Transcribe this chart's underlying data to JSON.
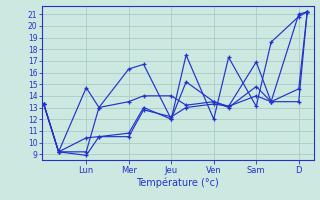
{
  "xlabel": "Température (°c)",
  "background_color": "#cce8e0",
  "grid_color": "#aaccc4",
  "line_color": "#2233cc",
  "spine_color": "#2233cc",
  "day_labels": [
    "Lun",
    "Mer",
    "Jeu",
    "Ven",
    "Sam",
    "D"
  ],
  "day_positions": [
    1.0,
    2.0,
    3.0,
    4.0,
    5.0,
    6.0
  ],
  "ylim": [
    8.5,
    21.7
  ],
  "xlim": [
    -0.05,
    6.35
  ],
  "yticks": [
    9,
    10,
    11,
    12,
    13,
    14,
    15,
    16,
    17,
    18,
    19,
    20,
    21
  ],
  "series": [
    {
      "x": [
        0.0,
        0.35,
        1.0,
        1.3,
        2.0,
        2.35,
        3.0,
        3.35,
        4.0,
        4.35,
        5.0,
        5.35,
        6.0,
        6.2
      ],
      "y": [
        13.3,
        9.2,
        9.2,
        13.0,
        13.5,
        14.0,
        14.0,
        13.2,
        13.5,
        13.0,
        14.8,
        13.5,
        21.0,
        21.2
      ]
    },
    {
      "x": [
        0.0,
        0.35,
        1.0,
        1.3,
        2.0,
        2.35,
        3.0,
        3.35,
        4.0,
        4.35,
        5.0,
        5.35,
        6.0,
        6.2
      ],
      "y": [
        13.3,
        9.2,
        14.7,
        13.0,
        16.3,
        16.7,
        12.0,
        17.5,
        12.0,
        17.3,
        13.1,
        18.6,
        20.8,
        21.2
      ]
    },
    {
      "x": [
        0.0,
        0.35,
        1.0,
        1.3,
        2.0,
        2.35,
        3.0,
        3.35,
        4.0,
        4.35,
        5.0,
        5.35,
        6.0,
        6.2
      ],
      "y": [
        13.3,
        9.2,
        10.4,
        10.5,
        10.5,
        12.8,
        12.2,
        13.0,
        13.3,
        13.1,
        14.0,
        13.5,
        13.5,
        21.2
      ]
    },
    {
      "x": [
        0.0,
        0.35,
        1.0,
        1.3,
        2.0,
        2.35,
        3.0,
        3.35,
        4.0,
        4.35,
        5.0,
        5.35,
        6.0,
        6.2
      ],
      "y": [
        13.3,
        9.2,
        8.9,
        10.5,
        10.8,
        13.0,
        12.0,
        15.2,
        13.5,
        13.1,
        16.9,
        13.5,
        14.6,
        21.2
      ]
    }
  ],
  "ytick_fontsize": 5.5,
  "xtick_fontsize": 6.0,
  "xlabel_fontsize": 7.0,
  "linewidth": 0.85,
  "markersize": 3.5,
  "marker": "+"
}
